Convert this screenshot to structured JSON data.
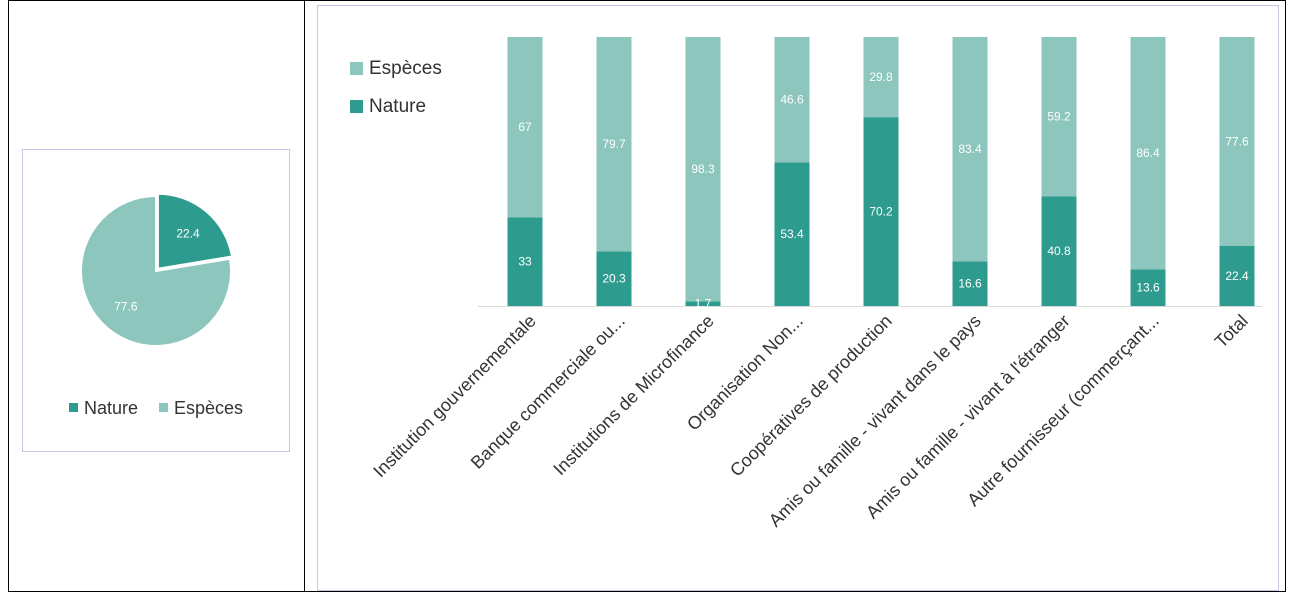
{
  "colors": {
    "nature": "#2e9b8f",
    "especes": "#8cc6bc",
    "panel_border": "#c9c3e6",
    "label_dark": "#333333"
  },
  "chart_data": [
    {
      "type": "pie",
      "slices": [
        {
          "name": "Nature",
          "value": 22.4
        },
        {
          "name": "Espèces",
          "value": 77.6
        }
      ],
      "legend": [
        "Nature",
        "Espèces"
      ],
      "legend_position": "bottom"
    },
    {
      "type": "bar",
      "stacked": true,
      "categories": [
        "Institution gouvernementale",
        "Banque commerciale ou...",
        "Institutions de Microfinance",
        "Organisation Non...",
        "Coopératives de production",
        "Amis ou famille - vivant dans le pays",
        "Amis ou famille - vivant à  l'étranger",
        "Autre fournisseur (commerçant...",
        "Total"
      ],
      "series": [
        {
          "name": "Nature",
          "values": [
            33,
            20.3,
            1.7,
            53.4,
            70.2,
            16.6,
            40.8,
            13.6,
            22.4
          ]
        },
        {
          "name": "Espèces",
          "values": [
            67,
            79.7,
            98.3,
            46.6,
            29.8,
            83.4,
            59.2,
            86.4,
            77.6
          ]
        }
      ],
      "legend": [
        "Espèces",
        "Nature"
      ],
      "legend_position": "top-left",
      "ylim": [
        0,
        100
      ],
      "grid": false
    }
  ]
}
